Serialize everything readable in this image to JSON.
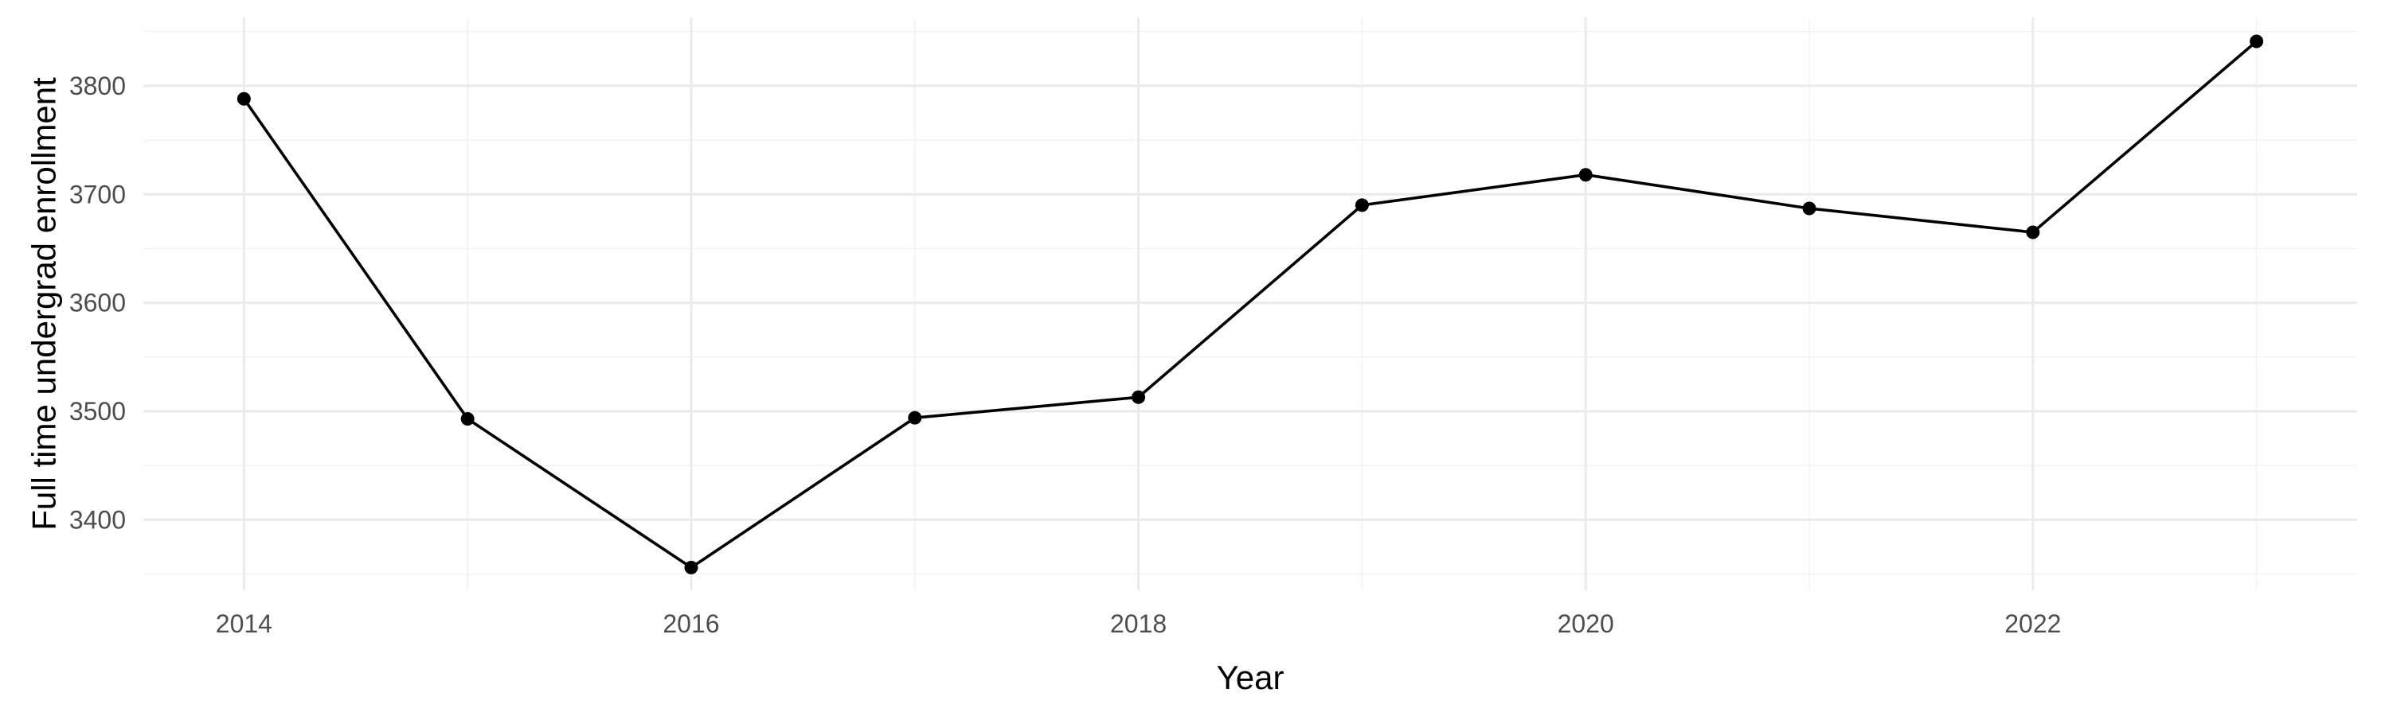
{
  "chart_data": {
    "type": "line",
    "title": "",
    "xlabel": "Year",
    "ylabel": "Full time undergrad enrollment",
    "x": [
      2014,
      2015,
      2016,
      2017,
      2018,
      2019,
      2020,
      2021,
      2022,
      2023
    ],
    "series": [
      {
        "values": [
          3788,
          3493,
          3356,
          3494,
          3513,
          3690,
          3718,
          3687,
          3665,
          3841
        ]
      }
    ],
    "xlim": [
      2013.55,
      2023.45
    ],
    "ylim": [
      3335,
      3863
    ],
    "x_major_ticks": [
      2014,
      2016,
      2018,
      2020,
      2022
    ],
    "x_minor_ticks": [
      2015,
      2017,
      2019,
      2021,
      2023
    ],
    "x_tick_labels": [
      "2014",
      "2016",
      "2018",
      "2020",
      "2022"
    ],
    "y_major_ticks": [
      3400,
      3500,
      3600,
      3700,
      3800
    ],
    "y_minor_ticks": [
      3350,
      3450,
      3550,
      3650,
      3750,
      3850
    ],
    "y_tick_labels": [
      "3400",
      "3500",
      "3600",
      "3700",
      "3800"
    ],
    "grid": true,
    "legend": "none",
    "line_color": "#000000",
    "point_color": "#000000"
  }
}
